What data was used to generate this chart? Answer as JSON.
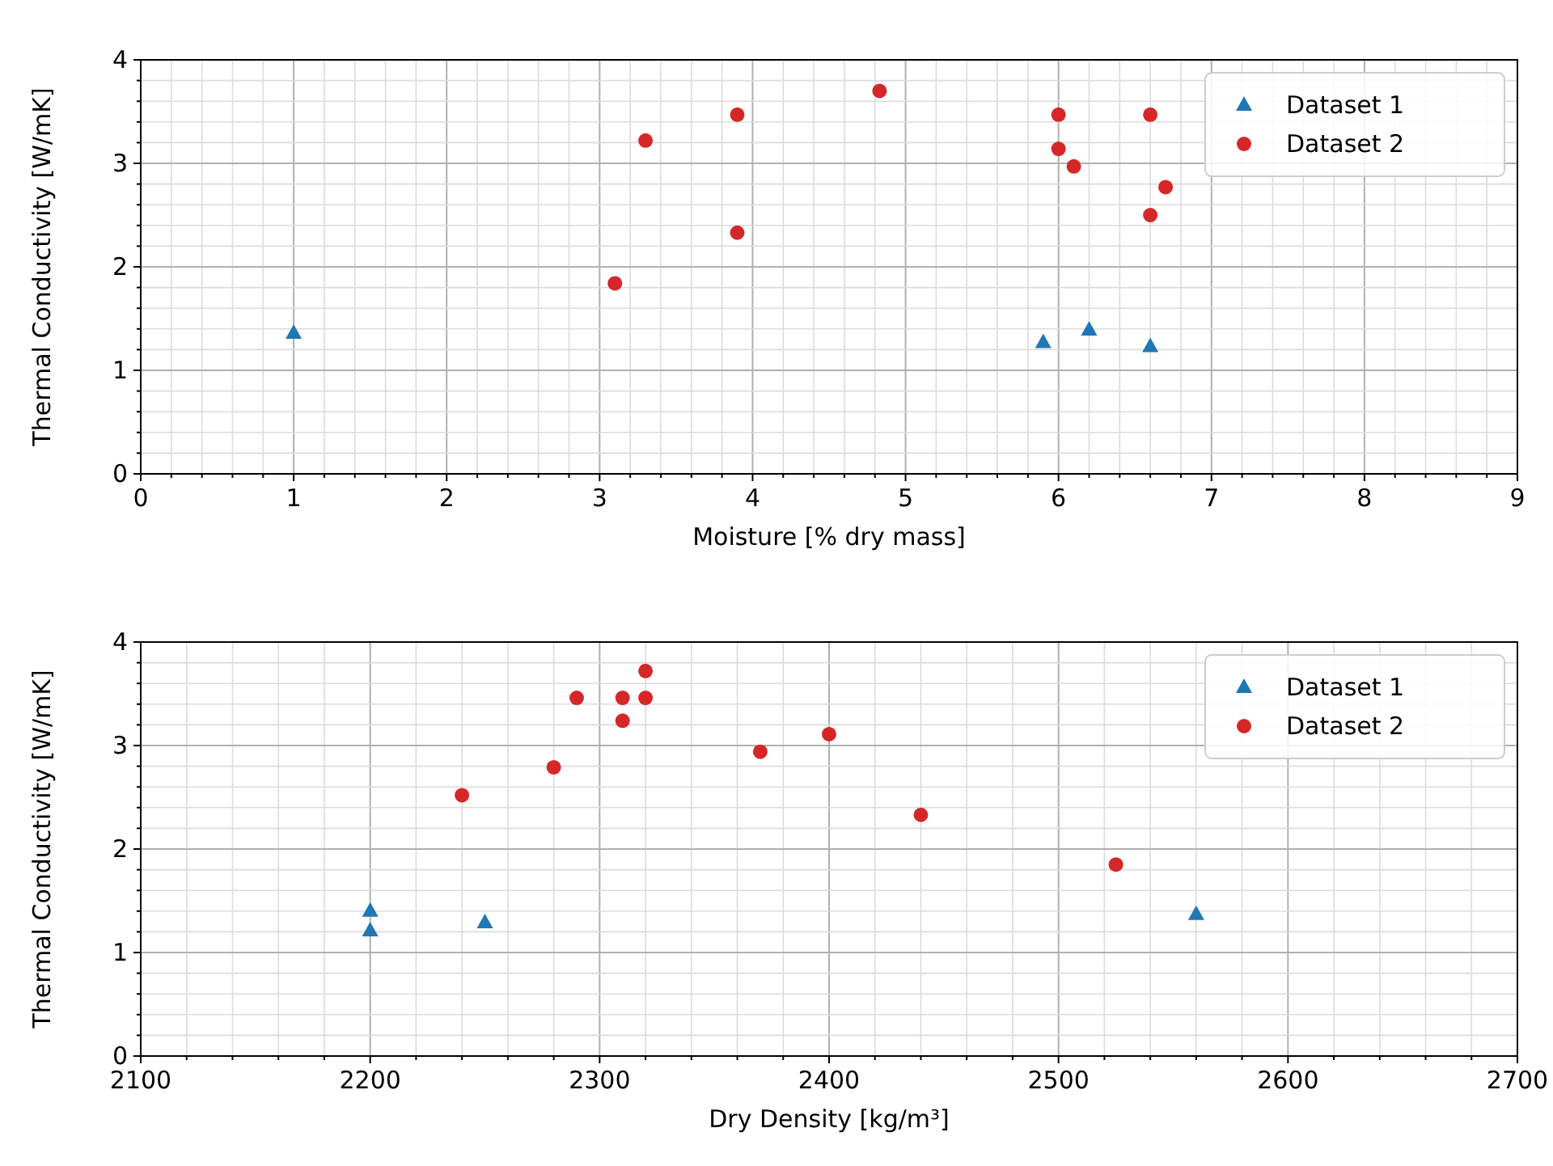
{
  "chart_data": [
    {
      "type": "scatter",
      "xlabel": "Moisture [% dry mass]",
      "ylabel": "Thermal Conductivity [W/mK]",
      "grid": true,
      "legend": "top right",
      "xlim": [
        0,
        9
      ],
      "ylim": [
        0,
        4
      ],
      "xticks": [
        0,
        {
          "value": 0.2,
          "label": null
        },
        {
          "value": 0.4,
          "label": null
        },
        {
          "value": 0.6,
          "label": null
        },
        {
          "value": 0.8,
          "label": null
        },
        1,
        {
          "value": 1.2,
          "label": null
        },
        {
          "value": 1.4,
          "label": null
        },
        {
          "value": 1.6,
          "label": null
        },
        {
          "value": 1.8,
          "label": null
        },
        2,
        {
          "value": 2.2,
          "label": null
        },
        {
          "value": 2.4,
          "label": null
        },
        {
          "value": 2.6,
          "label": null
        },
        {
          "value": 2.8,
          "label": null
        },
        3,
        {
          "value": 3.2,
          "label": null
        },
        {
          "value": 3.4,
          "label": null
        },
        {
          "value": 3.6,
          "label": null
        },
        {
          "value": 3.8,
          "label": null
        },
        4,
        {
          "value": 4.2,
          "label": null
        },
        {
          "value": 4.4,
          "label": null
        },
        {
          "value": 4.6,
          "label": null
        },
        {
          "value": 4.8,
          "label": null
        },
        5,
        {
          "value": 5.2,
          "label": null
        },
        {
          "value": 5.4,
          "label": null
        },
        {
          "value": 5.6,
          "label": null
        },
        {
          "value": 5.8,
          "label": null
        },
        6,
        {
          "value": 6.2,
          "label": null
        },
        {
          "value": 6.4,
          "label": null
        },
        {
          "value": 6.6,
          "label": null
        },
        {
          "value": 6.8,
          "label": null
        },
        7,
        {
          "value": 7.2,
          "label": null
        },
        {
          "value": 7.4,
          "label": null
        },
        {
          "value": 7.6,
          "label": null
        },
        {
          "value": 7.8,
          "label": null
        },
        8,
        {
          "value": 8.2,
          "label": null
        },
        {
          "value": 8.4,
          "label": null
        },
        {
          "value": 8.6,
          "label": null
        },
        {
          "value": 8.8,
          "label": null
        },
        9
      ],
      "yticks": [
        0,
        {
          "value": 0.2,
          "label": null
        },
        {
          "value": 0.4,
          "label": null
        },
        {
          "value": 0.6,
          "label": null
        },
        {
          "value": 0.8,
          "label": null
        },
        1,
        {
          "value": 1.2,
          "label": null
        },
        {
          "value": 1.4,
          "label": null
        },
        {
          "value": 1.6,
          "label": null
        },
        {
          "value": 1.8,
          "label": null
        },
        2,
        {
          "value": 2.2,
          "label": null
        },
        {
          "value": 2.4,
          "label": null
        },
        {
          "value": 2.6,
          "label": null
        },
        {
          "value": 2.8,
          "label": null
        },
        3,
        {
          "value": 3.2,
          "label": null
        },
        {
          "value": 3.4,
          "label": null
        },
        {
          "value": 3.6,
          "label": null
        },
        {
          "value": 3.8,
          "label": null
        },
        4
      ],
      "series": [
        {
          "name": "Dataset 1",
          "color": "#1f77b4",
          "marker": "triangle",
          "x": [
            1,
            5.9,
            6.2,
            6.6
          ],
          "values": [
            1.36,
            1.27,
            1.39,
            1.23
          ]
        },
        {
          "name": "Dataset 2",
          "color": "#d62728",
          "marker": "circle",
          "x": [
            3.1,
            3.3,
            3.9,
            3.9,
            4.83,
            6.0,
            6.0,
            6.1,
            6.6,
            6.6,
            6.7
          ],
          "values": [
            1.84,
            3.22,
            3.47,
            2.33,
            3.7,
            3.47,
            3.14,
            2.97,
            3.47,
            2.5,
            2.77
          ]
        }
      ]
    },
    {
      "type": "scatter",
      "xlabel": "Dry Density [kg/m³]",
      "ylabel": "Thermal Conductivity [W/mK]",
      "grid": true,
      "legend": "top right",
      "xlim": [
        2100,
        2700
      ],
      "ylim": [
        0,
        4
      ],
      "xticks": [
        2100,
        {
          "value": 2120,
          "label": null
        },
        {
          "value": 2140,
          "label": null
        },
        {
          "value": 2160,
          "label": null
        },
        {
          "value": 2180,
          "label": null
        },
        2200,
        {
          "value": 2220,
          "label": null
        },
        {
          "value": 2240,
          "label": null
        },
        {
          "value": 2260,
          "label": null
        },
        {
          "value": 2280,
          "label": null
        },
        2300,
        {
          "value": 2320,
          "label": null
        },
        {
          "value": 2340,
          "label": null
        },
        {
          "value": 2360,
          "label": null
        },
        {
          "value": 2380,
          "label": null
        },
        2400,
        {
          "value": 2420,
          "label": null
        },
        {
          "value": 2440,
          "label": null
        },
        {
          "value": 2460,
          "label": null
        },
        {
          "value": 2480,
          "label": null
        },
        2500,
        {
          "value": 2520,
          "label": null
        },
        {
          "value": 2540,
          "label": null
        },
        {
          "value": 2560,
          "label": null
        },
        {
          "value": 2580,
          "label": null
        },
        2600,
        {
          "value": 2620,
          "label": null
        },
        {
          "value": 2640,
          "label": null
        },
        {
          "value": 2660,
          "label": null
        },
        {
          "value": 2680,
          "label": null
        },
        2700
      ],
      "yticks": [
        0,
        {
          "value": 0.2,
          "label": null
        },
        {
          "value": 0.4,
          "label": null
        },
        {
          "value": 0.6,
          "label": null
        },
        {
          "value": 0.8,
          "label": null
        },
        1,
        {
          "value": 1.2,
          "label": null
        },
        {
          "value": 1.4,
          "label": null
        },
        {
          "value": 1.6,
          "label": null
        },
        {
          "value": 1.8,
          "label": null
        },
        2,
        {
          "value": 2.2,
          "label": null
        },
        {
          "value": 2.4,
          "label": null
        },
        {
          "value": 2.6,
          "label": null
        },
        {
          "value": 2.8,
          "label": null
        },
        3,
        {
          "value": 3.2,
          "label": null
        },
        {
          "value": 3.4,
          "label": null
        },
        {
          "value": 3.6,
          "label": null
        },
        {
          "value": 3.8,
          "label": null
        },
        4
      ],
      "series": [
        {
          "name": "Dataset 1",
          "color": "#1f77b4",
          "marker": "triangle",
          "x": [
            2200,
            2200,
            2250,
            2560
          ],
          "values": [
            1.4,
            1.21,
            1.29,
            1.37
          ]
        },
        {
          "name": "Dataset 2",
          "color": "#d62728",
          "marker": "circle",
          "x": [
            2240,
            2280,
            2290,
            2310,
            2310,
            2320,
            2320,
            2370,
            2400,
            2440,
            2525
          ],
          "values": [
            2.52,
            2.79,
            3.46,
            3.46,
            3.24,
            3.72,
            3.46,
            2.94,
            3.11,
            2.33,
            1.85
          ]
        }
      ]
    }
  ]
}
